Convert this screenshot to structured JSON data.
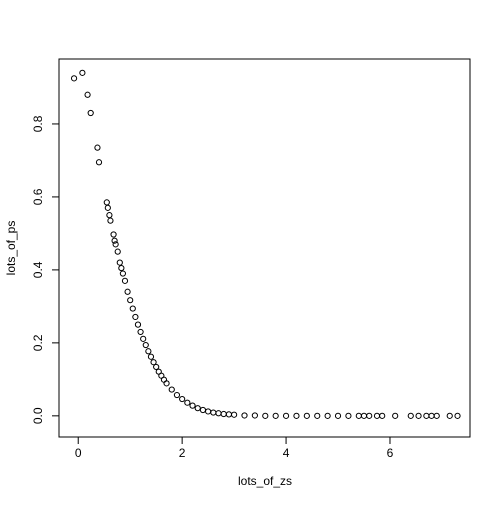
{
  "chart_data": {
    "type": "scatter",
    "x_label": "lots_of_zs",
    "y_label": "lots_of_ps",
    "color": "#000000",
    "x": [
      -0.08,
      0.08,
      0.18,
      0.24,
      0.37,
      0.4,
      0.55,
      0.57,
      0.6,
      0.62,
      0.68,
      0.7,
      0.72,
      0.76,
      0.8,
      0.83,
      0.86,
      0.9,
      0.95,
      1.0,
      1.05,
      1.1,
      1.15,
      1.2,
      1.25,
      1.3,
      1.35,
      1.4,
      1.45,
      1.5,
      1.55,
      1.6,
      1.65,
      1.7,
      1.8,
      1.9,
      2.0,
      2.1,
      2.2,
      2.3,
      2.4,
      2.5,
      2.6,
      2.7,
      2.8,
      2.9,
      3.0,
      3.2,
      3.4,
      3.6,
      3.8,
      4.0,
      4.2,
      4.4,
      4.6,
      4.8,
      5.0,
      5.2,
      5.4,
      5.5,
      5.6,
      5.75,
      5.85,
      6.1,
      6.4,
      6.55,
      6.7,
      6.8,
      6.9,
      7.15,
      7.3
    ],
    "values": [
      0.925,
      0.94,
      0.88,
      0.83,
      0.735,
      0.695,
      0.585,
      0.57,
      0.55,
      0.535,
      0.497,
      0.48,
      0.47,
      0.45,
      0.42,
      0.405,
      0.39,
      0.37,
      0.34,
      0.317,
      0.294,
      0.271,
      0.25,
      0.23,
      0.211,
      0.194,
      0.177,
      0.162,
      0.147,
      0.134,
      0.121,
      0.11,
      0.099,
      0.089,
      0.072,
      0.057,
      0.046,
      0.036,
      0.028,
      0.021,
      0.016,
      0.012,
      0.009,
      0.007,
      0.005,
      0.004,
      0.003,
      0.001,
      0.001,
      0,
      0,
      0,
      0,
      0,
      0,
      0,
      0,
      0,
      0,
      0,
      0,
      0,
      0,
      0,
      0,
      0,
      0,
      0,
      0,
      0,
      0
    ],
    "xlim": [
      -0.37,
      7.54
    ],
    "ylim": [
      -0.058,
      0.978
    ],
    "xticks": [
      0,
      2,
      4,
      6
    ],
    "yticks": [
      {
        "value": 0,
        "label": "0.0"
      },
      {
        "value": 0.2,
        "label": "0.2"
      },
      {
        "value": 0.4,
        "label": "0.4"
      },
      {
        "value": 0.6,
        "label": "0.6"
      },
      {
        "value": 0.8,
        "label": "0.8"
      }
    ]
  }
}
